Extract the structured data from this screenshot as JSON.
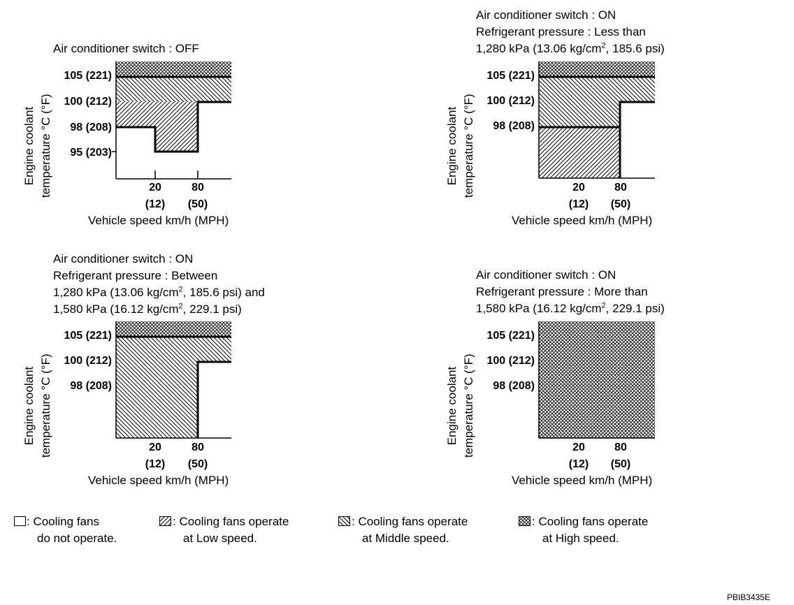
{
  "panels": [
    {
      "caption": [
        "Air conditioner switch : OFF"
      ],
      "y_title": [
        "Engine coolant",
        "temperature °C (°F)"
      ],
      "y_ticks": [
        "105 (221)",
        "100 (212)",
        "98 (208)",
        "95 (203)"
      ],
      "x_ticks": [
        [
          "20",
          "(12)"
        ],
        [
          "80",
          "(50)"
        ]
      ],
      "x_title": "Vehicle speed km/h (MPH)"
    },
    {
      "caption": [
        "Air conditioner switch : ON",
        "Refrigerant pressure : Less than",
        "1,280 kPa (13.06 kg/cm2, 185.6 psi)"
      ],
      "y_title": [
        "Engine coolant",
        "temperature °C (°F)"
      ],
      "y_ticks": [
        "105 (221)",
        "100 (212)",
        "98 (208)"
      ],
      "x_ticks": [
        [
          "20",
          "(12)"
        ],
        [
          "80",
          "(50)"
        ]
      ],
      "x_title": "Vehicle speed km/h (MPH)"
    },
    {
      "caption": [
        "Air conditioner switch : ON",
        "Refrigerant pressure : Between",
        "1,280 kPa (13.06 kg/cm2, 185.6 psi) and",
        "1,580 kPa (16.12 kg/cm2, 229.1 psi)"
      ],
      "y_title": [
        "Engine coolant",
        "temperature °C (°F)"
      ],
      "y_ticks": [
        "105 (221)",
        "100 (212)",
        "98 (208)"
      ],
      "x_ticks": [
        [
          "20",
          "(12)"
        ],
        [
          "80",
          "(50)"
        ]
      ],
      "x_title": "Vehicle speed km/h (MPH)"
    },
    {
      "caption": [
        "Air conditioner switch : ON",
        "Refrigerant pressure : More than",
        "1,580 kPa (16.12 kg/cm2, 229.1 psi)"
      ],
      "y_title": [
        "Engine coolant",
        "temperature °C (°F)"
      ],
      "y_ticks": [
        "105 (221)",
        "100 (212)",
        "98 (208)"
      ],
      "x_ticks": [
        [
          "20",
          "(12)"
        ],
        [
          "80",
          "(50)"
        ]
      ],
      "x_title": "Vehicle speed km/h (MPH)"
    }
  ],
  "legend": [
    {
      "pattern": "none",
      "text": [
        ": Cooling fans",
        "do not operate."
      ]
    },
    {
      "pattern": "low",
      "text": [
        ": Cooling fans operate",
        "at Low speed."
      ]
    },
    {
      "pattern": "middle",
      "text": [
        ": Cooling fans operate",
        "at Middle speed."
      ]
    },
    {
      "pattern": "high",
      "text": [
        ": Cooling fans operate",
        "at High speed."
      ]
    }
  ],
  "figure_id": "PBIB3435E"
}
